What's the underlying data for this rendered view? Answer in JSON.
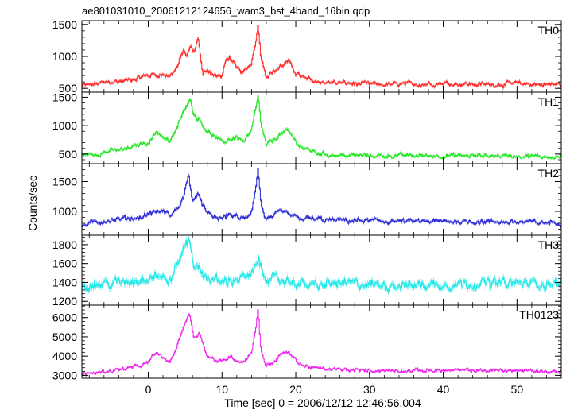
{
  "chart_data": {
    "type": "line",
    "title": "ae801031010_20061212124656_wam3_bst_4band_16bin.qdp",
    "xlabel": "Time [sec] 0 = 2006/12/12 12:46:56.004",
    "ylabel": "Counts/sec",
    "xlim": [
      -9,
      56
    ],
    "xticks": [
      0,
      10,
      20,
      30,
      40,
      50
    ],
    "grid": false,
    "panels": [
      {
        "name": "TH0",
        "color": "#ff2a2a",
        "ylim": [
          440,
          1560
        ],
        "yticks": [
          500,
          1000,
          1500
        ],
        "baseline": 560,
        "noise": 40,
        "points": [
          [
            -9,
            540
          ],
          [
            -7,
            570
          ],
          [
            -5,
            600
          ],
          [
            -3,
            620
          ],
          [
            -1,
            680
          ],
          [
            1,
            720
          ],
          [
            3,
            700
          ],
          [
            4,
            850
          ],
          [
            4.8,
            1100
          ],
          [
            5.2,
            1000
          ],
          [
            5.8,
            1150
          ],
          [
            6.2,
            1050
          ],
          [
            6.8,
            1300
          ],
          [
            7.4,
            700
          ],
          [
            8,
            800
          ],
          [
            9,
            700
          ],
          [
            10,
            680
          ],
          [
            10.5,
            920
          ],
          [
            11,
            1000
          ],
          [
            12,
            800
          ],
          [
            13,
            750
          ],
          [
            14,
            900
          ],
          [
            14.5,
            1200
          ],
          [
            14.9,
            1500
          ],
          [
            15.3,
            1000
          ],
          [
            16,
            700
          ],
          [
            17,
            760
          ],
          [
            18,
            850
          ],
          [
            19,
            920
          ],
          [
            20,
            750
          ],
          [
            21,
            660
          ],
          [
            23,
            600
          ],
          [
            25,
            590
          ],
          [
            30,
            560
          ],
          [
            35,
            560
          ],
          [
            40,
            580
          ],
          [
            45,
            560
          ],
          [
            50,
            570
          ],
          [
            55,
            560
          ],
          [
            56,
            560
          ]
        ]
      },
      {
        "name": "TH1",
        "color": "#22e822",
        "ylim": [
          330,
          1590
        ],
        "yticks": [
          500,
          1000,
          1500
        ],
        "baseline": 480,
        "noise": 40,
        "points": [
          [
            -9,
            480
          ],
          [
            -7,
            500
          ],
          [
            -5,
            560
          ],
          [
            -3,
            580
          ],
          [
            -1,
            680
          ],
          [
            0,
            700
          ],
          [
            1.2,
            900
          ],
          [
            2,
            800
          ],
          [
            3,
            700
          ],
          [
            4,
            1000
          ],
          [
            5,
            1300
          ],
          [
            5.6,
            1500
          ],
          [
            6.2,
            1200
          ],
          [
            7,
            1100
          ],
          [
            8,
            900
          ],
          [
            9,
            800
          ],
          [
            10,
            700
          ],
          [
            11,
            760
          ],
          [
            12,
            800
          ],
          [
            13,
            720
          ],
          [
            14,
            900
          ],
          [
            14.6,
            1300
          ],
          [
            14.9,
            1550
          ],
          [
            15.3,
            1000
          ],
          [
            16,
            650
          ],
          [
            17,
            750
          ],
          [
            18,
            860
          ],
          [
            19,
            900
          ],
          [
            20,
            720
          ],
          [
            21,
            600
          ],
          [
            23,
            520
          ],
          [
            25,
            480
          ],
          [
            30,
            470
          ],
          [
            35,
            470
          ],
          [
            40,
            470
          ],
          [
            45,
            470
          ],
          [
            50,
            470
          ],
          [
            55,
            450
          ],
          [
            56,
            450
          ]
        ]
      },
      {
        "name": "TH2",
        "color": "#2a2ad6",
        "ylim": [
          600,
          1800
        ],
        "yticks": [
          1000,
          1500
        ],
        "baseline": 820,
        "noise": 45,
        "points": [
          [
            -9,
            760
          ],
          [
            -7,
            820
          ],
          [
            -5,
            860
          ],
          [
            -3,
            880
          ],
          [
            -1,
            900
          ],
          [
            0,
            960
          ],
          [
            1,
            1000
          ],
          [
            2,
            1000
          ],
          [
            3,
            940
          ],
          [
            4,
            1050
          ],
          [
            4.8,
            1250
          ],
          [
            5.5,
            1600
          ],
          [
            6,
            1200
          ],
          [
            7,
            1250
          ],
          [
            8,
            950
          ],
          [
            9,
            900
          ],
          [
            10,
            880
          ],
          [
            11,
            960
          ],
          [
            12,
            900
          ],
          [
            13,
            870
          ],
          [
            14,
            1000
          ],
          [
            14.6,
            1400
          ],
          [
            14.9,
            1750
          ],
          [
            15.3,
            1100
          ],
          [
            16,
            860
          ],
          [
            17,
            900
          ],
          [
            18,
            1000
          ],
          [
            19,
            950
          ],
          [
            20,
            900
          ],
          [
            21,
            880
          ],
          [
            25,
            850
          ],
          [
            30,
            840
          ],
          [
            35,
            830
          ],
          [
            40,
            830
          ],
          [
            45,
            830
          ],
          [
            50,
            820
          ],
          [
            55,
            810
          ],
          [
            56,
            810
          ]
        ]
      },
      {
        "name": "TH3",
        "color": "#22e8e8",
        "ylim": [
          1160,
          1900
        ],
        "yticks": [
          1200,
          1400,
          1600,
          1800
        ],
        "baseline": 1370,
        "noise": 55,
        "points": [
          [
            -9,
            1360
          ],
          [
            -7,
            1380
          ],
          [
            -5,
            1390
          ],
          [
            -3,
            1410
          ],
          [
            -1,
            1430
          ],
          [
            0,
            1460
          ],
          [
            1,
            1490
          ],
          [
            2,
            1440
          ],
          [
            3,
            1420
          ],
          [
            4,
            1600
          ],
          [
            5,
            1800
          ],
          [
            5.6,
            1850
          ],
          [
            6.2,
            1600
          ],
          [
            7,
            1520
          ],
          [
            8,
            1450
          ],
          [
            10,
            1400
          ],
          [
            12,
            1440
          ],
          [
            14,
            1460
          ],
          [
            14.9,
            1650
          ],
          [
            15.5,
            1500
          ],
          [
            17,
            1420
          ],
          [
            19,
            1420
          ],
          [
            21,
            1380
          ],
          [
            23,
            1360
          ],
          [
            25,
            1390
          ],
          [
            30,
            1380
          ],
          [
            35,
            1370
          ],
          [
            40,
            1380
          ],
          [
            45,
            1390
          ],
          [
            50,
            1390
          ],
          [
            55,
            1390
          ],
          [
            56,
            1390
          ]
        ]
      },
      {
        "name": "TH0123",
        "color": "#ee22ee",
        "ylim": [
          2850,
          6650
        ],
        "yticks": [
          3000,
          4000,
          5000,
          6000
        ],
        "baseline": 3250,
        "noise": 100,
        "points": [
          [
            -9,
            3050
          ],
          [
            -7,
            3150
          ],
          [
            -5,
            3250
          ],
          [
            -3,
            3350
          ],
          [
            -1,
            3500
          ],
          [
            0,
            3650
          ],
          [
            1,
            4200
          ],
          [
            2,
            3900
          ],
          [
            3,
            3700
          ],
          [
            4,
            4600
          ],
          [
            4.8,
            5600
          ],
          [
            5.6,
            6200
          ],
          [
            6.2,
            5000
          ],
          [
            7,
            5200
          ],
          [
            8,
            4000
          ],
          [
            9,
            3800
          ],
          [
            10,
            3700
          ],
          [
            11,
            4000
          ],
          [
            12,
            3800
          ],
          [
            13,
            3700
          ],
          [
            14,
            4200
          ],
          [
            14.6,
            5500
          ],
          [
            14.9,
            6400
          ],
          [
            15.3,
            4300
          ],
          [
            16,
            3500
          ],
          [
            17,
            3700
          ],
          [
            18,
            4100
          ],
          [
            19,
            4200
          ],
          [
            20,
            3800
          ],
          [
            21,
            3500
          ],
          [
            23,
            3350
          ],
          [
            25,
            3300
          ],
          [
            30,
            3250
          ],
          [
            35,
            3250
          ],
          [
            40,
            3250
          ],
          [
            45,
            3250
          ],
          [
            50,
            3250
          ],
          [
            55,
            3200
          ],
          [
            56,
            3200
          ]
        ]
      }
    ]
  }
}
